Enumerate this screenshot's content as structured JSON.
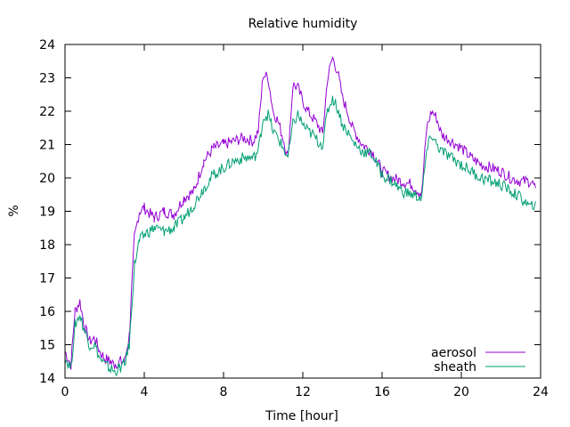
{
  "chart_data": {
    "type": "line",
    "title": "Relative humidity",
    "xlabel": "Time [hour]",
    "ylabel": "%",
    "xlim": [
      0,
      24
    ],
    "ylim": [
      14,
      24
    ],
    "xticks": [
      0,
      4,
      8,
      12,
      16,
      20,
      24
    ],
    "yticks": [
      14,
      15,
      16,
      17,
      18,
      19,
      20,
      21,
      22,
      23,
      24
    ],
    "grid": false,
    "legend_position": "bottom-right",
    "x": [
      0,
      0.3,
      0.5,
      0.75,
      1,
      1.25,
      1.5,
      1.75,
      2,
      2.25,
      2.5,
      2.75,
      3,
      3.25,
      3.5,
      3.75,
      4,
      4.5,
      5,
      5.5,
      6,
      6.5,
      7,
      7.5,
      8,
      8.5,
      9,
      9.5,
      9.75,
      10,
      10.25,
      10.5,
      10.75,
      11,
      11.25,
      11.5,
      11.75,
      12,
      12.25,
      12.5,
      12.75,
      13,
      13.25,
      13.5,
      13.75,
      14,
      14.25,
      14.5,
      15,
      15.5,
      16,
      16.5,
      17,
      17.5,
      18,
      18.25,
      18.5,
      18.75,
      19,
      19.5,
      20,
      20.5,
      21,
      21.5,
      22,
      22.5,
      23,
      23.5,
      23.75
    ],
    "series": [
      {
        "name": "aerosol",
        "color": "#9400d3",
        "values": [
          14.8,
          14.4,
          16.0,
          16.3,
          15.5,
          15.1,
          15.2,
          14.8,
          14.6,
          14.5,
          14.4,
          14.5,
          14.5,
          15.3,
          18.2,
          19.0,
          19.1,
          18.8,
          19.0,
          18.9,
          19.4,
          19.6,
          20.5,
          20.9,
          21.0,
          21.1,
          21.2,
          21.1,
          21.4,
          23.1,
          23.0,
          22.0,
          21.7,
          21.2,
          20.6,
          22.8,
          22.7,
          22.3,
          22.0,
          21.8,
          21.6,
          21.3,
          23.0,
          23.6,
          23.2,
          22.4,
          22.0,
          21.5,
          21.0,
          20.8,
          20.2,
          20.0,
          19.9,
          19.8,
          19.5,
          21.5,
          22.0,
          21.8,
          21.3,
          21.1,
          20.9,
          20.6,
          20.4,
          20.3,
          20.2,
          20.0,
          19.9,
          19.9,
          19.7
        ]
      },
      {
        "name": "sheath",
        "color": "#009e73",
        "values": [
          14.6,
          14.3,
          15.6,
          15.9,
          15.4,
          15.0,
          15.0,
          14.6,
          14.4,
          14.3,
          14.2,
          14.3,
          14.4,
          15.0,
          17.4,
          18.1,
          18.3,
          18.5,
          18.4,
          18.5,
          18.8,
          19.2,
          19.7,
          20.1,
          20.3,
          20.5,
          20.6,
          20.6,
          20.8,
          21.8,
          21.9,
          21.4,
          21.2,
          20.9,
          20.6,
          21.6,
          21.9,
          21.6,
          21.4,
          21.3,
          21.1,
          21.0,
          22.0,
          22.4,
          22.1,
          21.6,
          21.4,
          21.1,
          20.8,
          20.7,
          20.1,
          19.9,
          19.6,
          19.5,
          19.4,
          20.8,
          21.3,
          21.0,
          20.8,
          20.6,
          20.4,
          20.2,
          20.0,
          19.9,
          19.8,
          19.6,
          19.4,
          19.1,
          19.3
        ]
      }
    ]
  }
}
